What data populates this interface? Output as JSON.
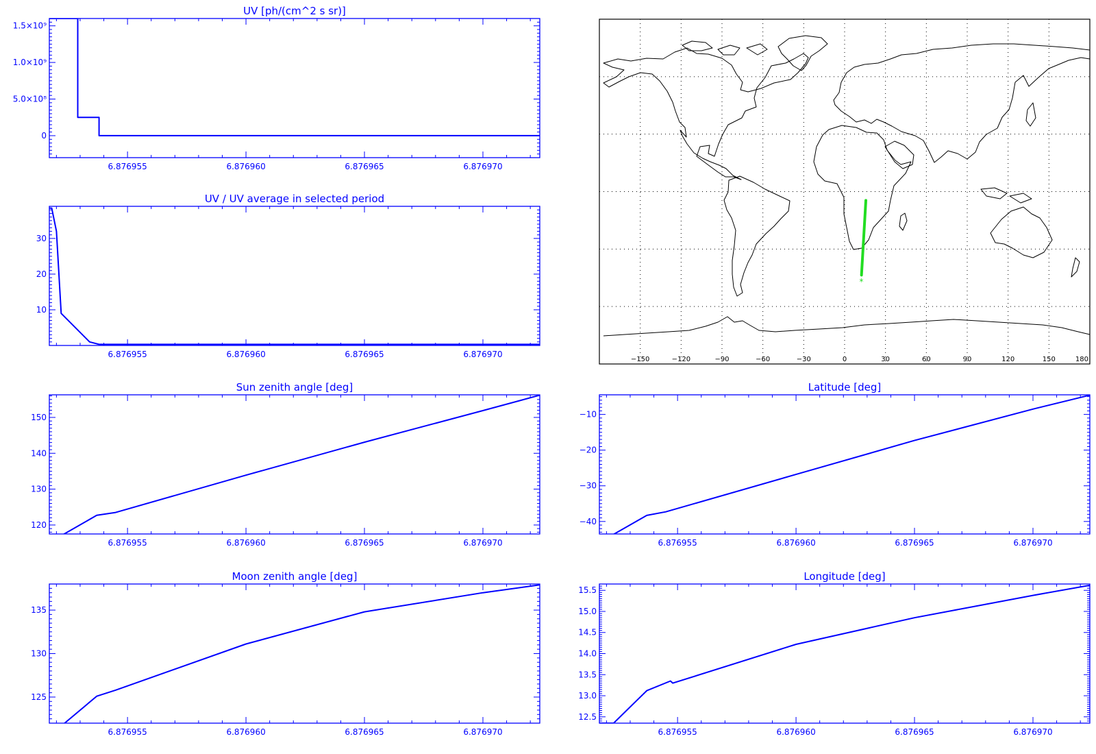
{
  "colors": {
    "axis": "#0000ff",
    "map_frame": "#000000",
    "track": "#22dd22",
    "background": "#ffffff"
  },
  "chart_data": [
    {
      "id": "uv",
      "type": "line",
      "title": "UV [ph/(cm^2 s sr)]",
      "xlim": [
        6.8769517,
        6.8769724
      ],
      "ylim": [
        -0.3,
        1.6
      ],
      "xticks": [
        6.876955,
        6.87696,
        6.876965,
        6.87697
      ],
      "xtick_labels": [
        "6.876955",
        "6.876960",
        "6.876965",
        "6.876970"
      ],
      "yticks": [
        0,
        0.5,
        1.0,
        1.5
      ],
      "ytick_labels": [
        "0",
        "5.0×10⁸",
        "1.0×10⁹",
        "1.5×10⁹"
      ],
      "ylabel_scale_note": "tick values in units of 10^9",
      "step": true,
      "series": [
        {
          "x": [
            6.8769517,
            6.8769529,
            6.8769529,
            6.8769538,
            6.8769538,
            6.87696,
            6.876965,
            6.8769724
          ],
          "y": [
            1.6,
            1.6,
            0.25,
            0.25,
            0.0,
            0.0,
            0.0,
            0.0
          ]
        }
      ]
    },
    {
      "id": "uv_ratio",
      "type": "line",
      "title": "UV / UV average in selected period",
      "xlim": [
        6.8769517,
        6.8769724
      ],
      "ylim": [
        0,
        39
      ],
      "xticks": [
        6.876955,
        6.87696,
        6.876965,
        6.87697
      ],
      "xtick_labels": [
        "6.876955",
        "6.876960",
        "6.876965",
        "6.876970"
      ],
      "yticks": [
        10,
        20,
        30
      ],
      "ytick_labels": [
        "10",
        "20",
        "30"
      ],
      "series": [
        {
          "x": [
            6.8769517,
            6.8769518,
            6.876952,
            6.8769522,
            6.8769534,
            6.8769538,
            6.8769724
          ],
          "y": [
            38.5,
            38.5,
            32,
            9,
            1,
            0.3,
            0.3
          ]
        }
      ]
    },
    {
      "id": "sun_zenith",
      "type": "line",
      "title": "Sun zenith angle [deg]",
      "xlim": [
        6.8769517,
        6.8769724
      ],
      "ylim": [
        117.5,
        156.3
      ],
      "xticks": [
        6.876955,
        6.87696,
        6.876965,
        6.87697
      ],
      "xtick_labels": [
        "6.876955",
        "6.876960",
        "6.876965",
        "6.876970"
      ],
      "yticks": [
        120,
        130,
        140,
        150
      ],
      "ytick_labels": [
        "120",
        "130",
        "140",
        "150"
      ],
      "series": [
        {
          "x": [
            6.8769517,
            6.8769523,
            6.8769537,
            6.8769545,
            6.87696,
            6.876965,
            6.87697,
            6.8769724
          ],
          "y": [
            117.4,
            117.4,
            122.7,
            123.5,
            133.9,
            143.1,
            151.9,
            156.2
          ]
        }
      ]
    },
    {
      "id": "latitude",
      "type": "line",
      "title": "Latitude [deg]",
      "xlim": [
        6.8769517,
        6.8769724
      ],
      "ylim": [
        -43.5,
        -4.5
      ],
      "xticks": [
        6.876955,
        6.87696,
        6.876965,
        6.87697
      ],
      "xtick_labels": [
        "6.876955",
        "6.876960",
        "6.876965",
        "6.876970"
      ],
      "yticks": [
        -40,
        -30,
        -20,
        -10
      ],
      "ytick_labels": [
        "−40",
        "−30",
        "−20",
        "−10"
      ],
      "series": [
        {
          "x": [
            6.8769517,
            6.8769523,
            6.8769537,
            6.8769545,
            6.87696,
            6.876965,
            6.87697,
            6.8769724
          ],
          "y": [
            -43.6,
            -43.6,
            -38.3,
            -37.3,
            -26.8,
            -17.3,
            -8.5,
            -4.6
          ]
        }
      ]
    },
    {
      "id": "moon_zenith",
      "type": "line",
      "title": "Moon zenith angle [deg]",
      "xlim": [
        6.8769517,
        6.8769724
      ],
      "ylim": [
        122,
        138
      ],
      "xticks": [
        6.876955,
        6.87696,
        6.876965,
        6.87697
      ],
      "xtick_labels": [
        "6.876955",
        "6.876960",
        "6.876965",
        "6.876970"
      ],
      "yticks": [
        125,
        130,
        135
      ],
      "ytick_labels": [
        "125",
        "130",
        "135"
      ],
      "series": [
        {
          "x": [
            6.8769517,
            6.8769523,
            6.8769537,
            6.8769545,
            6.87696,
            6.876965,
            6.87697,
            6.8769724
          ],
          "y": [
            121.9,
            121.9,
            125.1,
            125.8,
            131.1,
            134.8,
            137.0,
            137.9
          ]
        }
      ]
    },
    {
      "id": "longitude",
      "type": "line",
      "title": "Longitude [deg]",
      "xlim": [
        6.8769517,
        6.8769724
      ],
      "ylim": [
        12.35,
        15.65
      ],
      "xticks": [
        6.876955,
        6.87696,
        6.876965,
        6.87697
      ],
      "xtick_labels": [
        "6.876955",
        "6.876960",
        "6.876965",
        "6.876970"
      ],
      "yticks": [
        12.5,
        13.0,
        13.5,
        14.0,
        14.5,
        15.0,
        15.5
      ],
      "ytick_labels": [
        "12.5",
        "13.0",
        "13.5",
        "14.0",
        "14.5",
        "15.0",
        "15.5"
      ],
      "series": [
        {
          "x": [
            6.8769517,
            6.8769523,
            6.8769537,
            6.8769547,
            6.8769548,
            6.87696,
            6.876965,
            6.87697,
            6.8769724
          ],
          "y": [
            12.35,
            12.35,
            13.12,
            13.35,
            13.3,
            14.22,
            14.85,
            15.38,
            15.62
          ]
        }
      ]
    },
    {
      "id": "track_map",
      "type": "scatter",
      "title": "",
      "projection": "equirectangular world map with coastlines",
      "xlim": [
        -180,
        180
      ],
      "ylim": [
        -90,
        90
      ],
      "xticks": [
        -150,
        -120,
        -90,
        -60,
        -30,
        0,
        30,
        60,
        90,
        120,
        150,
        180
      ],
      "xtick_labels": [
        "−150",
        "−120",
        "−90",
        "−60",
        "−30",
        "0",
        "30",
        "60",
        "90",
        "120",
        "150",
        "180"
      ],
      "grid": "dotted",
      "track": {
        "lon": [
          12.4,
          15.6
        ],
        "lat": [
          -43.6,
          -4.6
        ]
      },
      "start_marker": {
        "lon": 12.3,
        "lat": -47,
        "symbol": "*"
      }
    }
  ]
}
